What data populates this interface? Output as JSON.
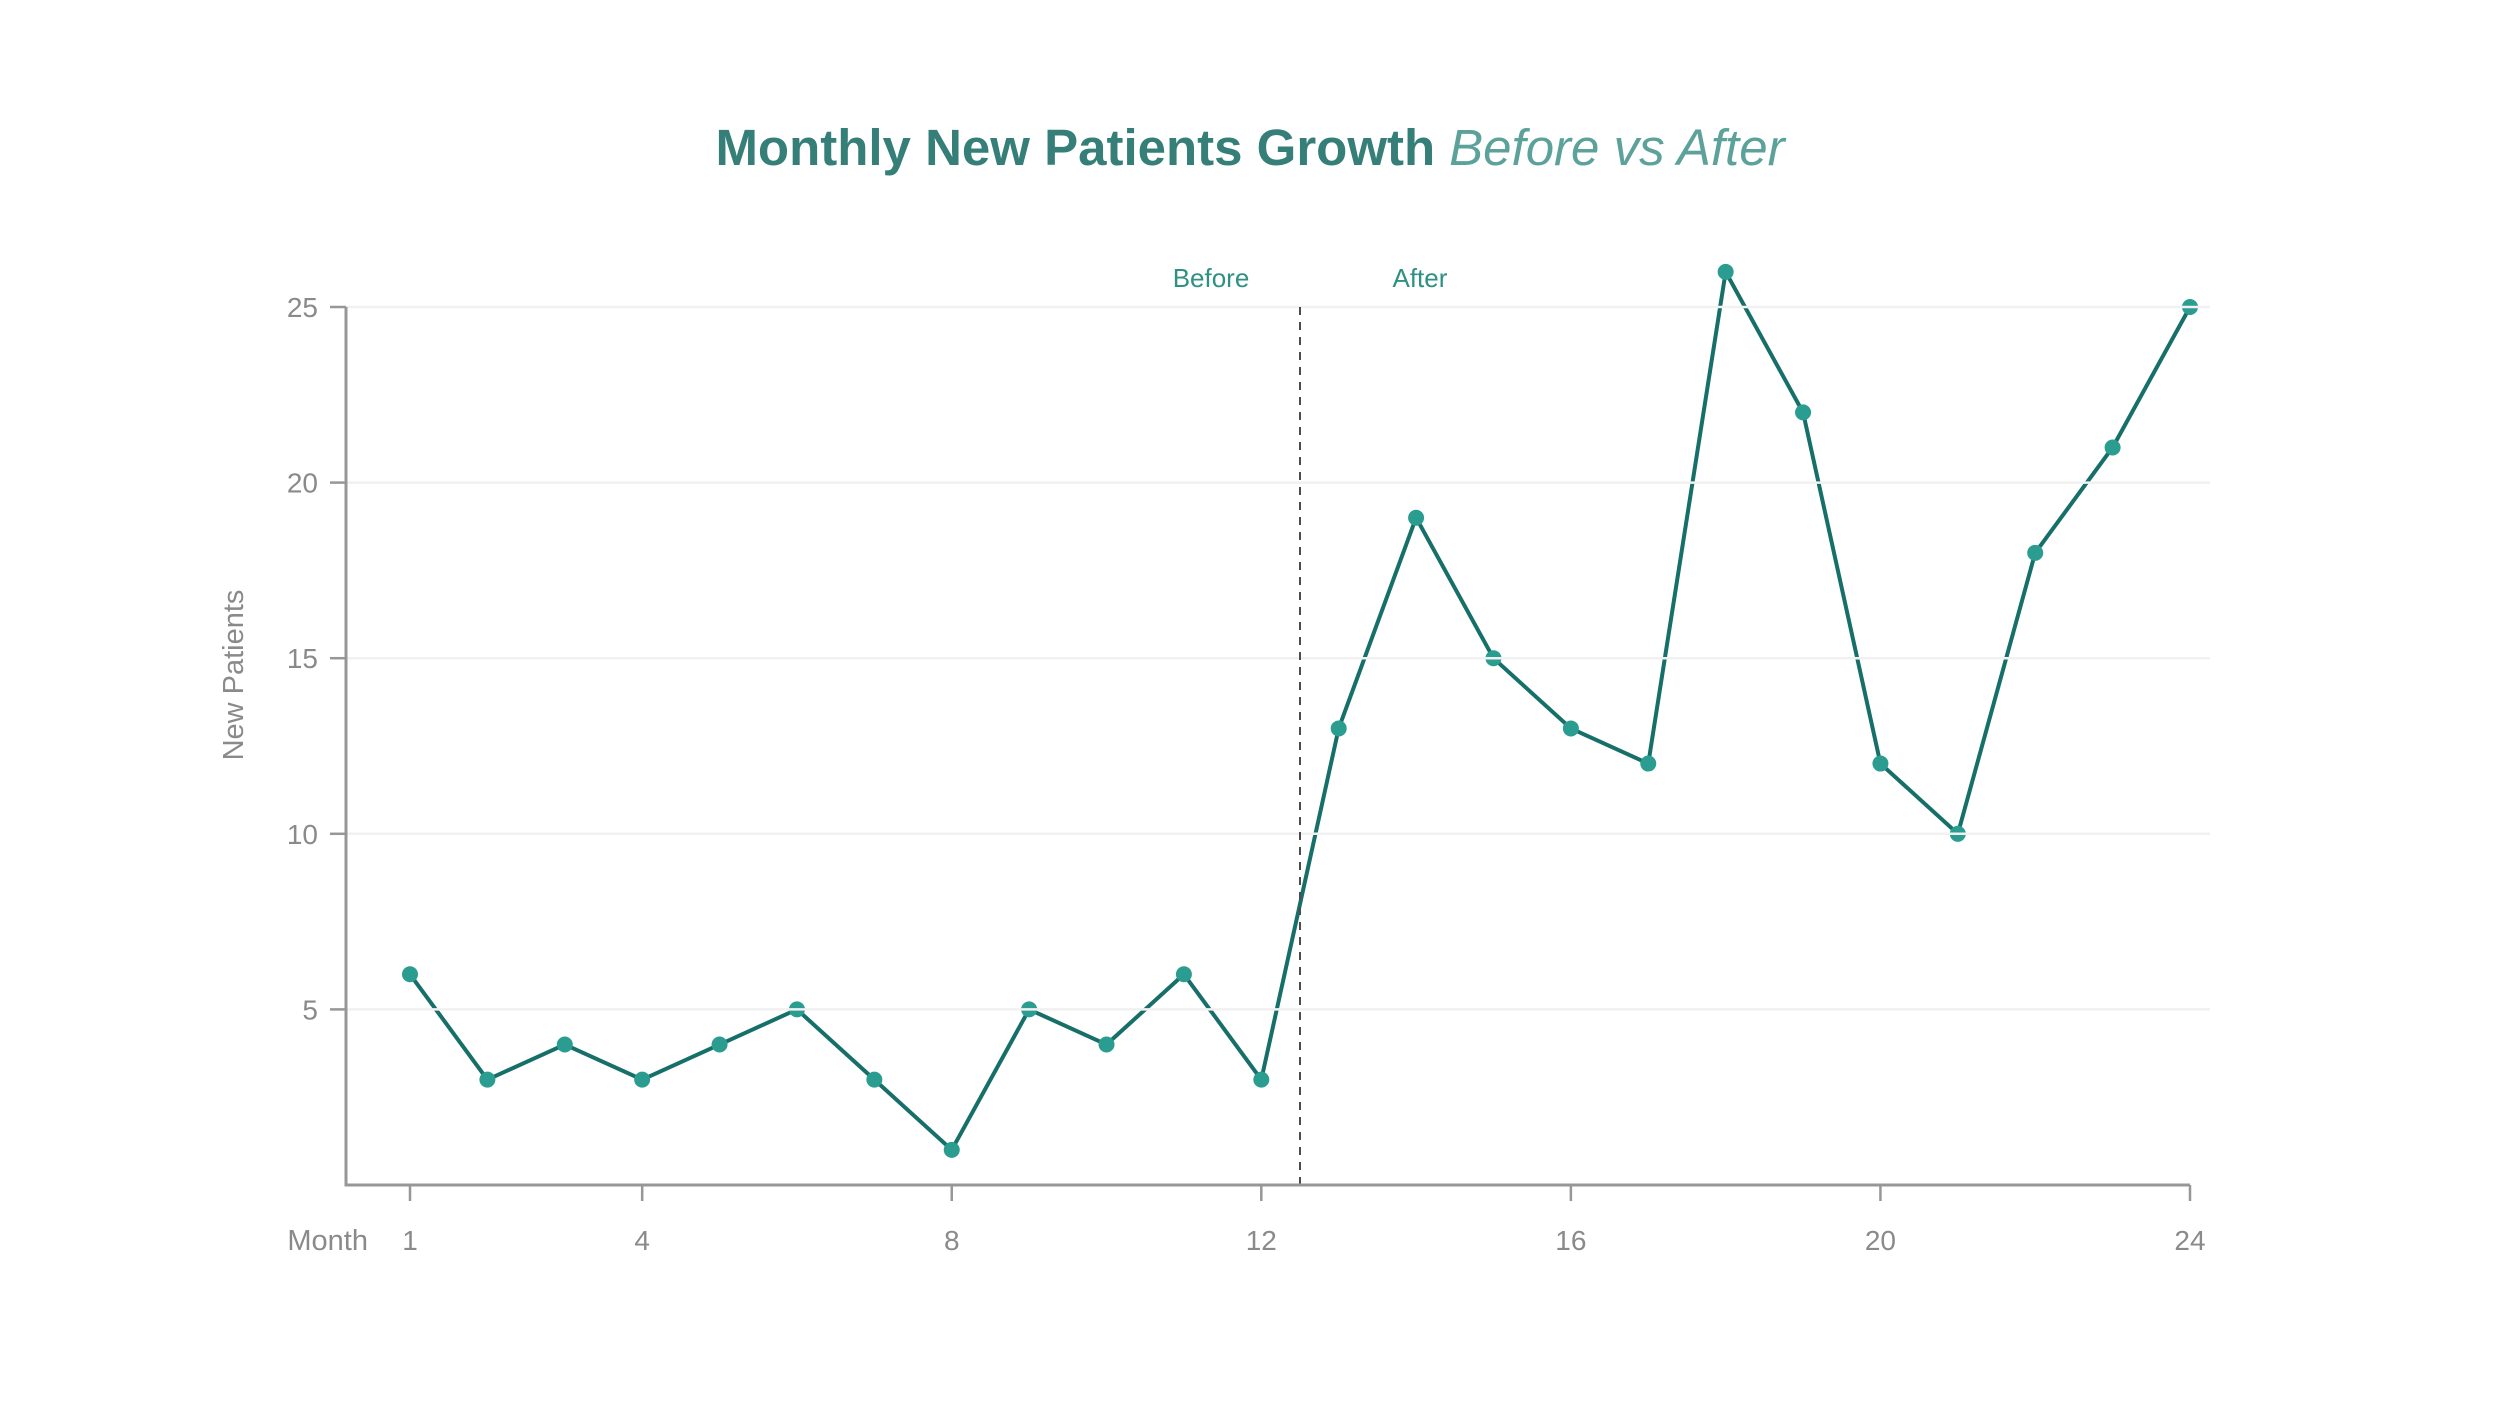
{
  "chart_data": {
    "type": "line",
    "title": "Monthly New Patients Growth",
    "subtitle": "Before vs After",
    "xlabel": "Month",
    "ylabel": "New Patients",
    "x": [
      1,
      2,
      3,
      4,
      5,
      6,
      7,
      8,
      9,
      10,
      11,
      12,
      13,
      14,
      15,
      16,
      17,
      18,
      19,
      20,
      21,
      22,
      23,
      24
    ],
    "series": [
      {
        "name": "New Patients",
        "values": [
          6,
          3,
          4,
          3,
          4,
          5,
          3,
          1,
          5,
          4,
          6,
          3,
          13,
          19,
          15,
          13,
          12,
          26,
          22,
          12,
          10,
          18,
          21,
          25
        ]
      }
    ],
    "x_ticks": [
      1,
      4,
      8,
      12,
      16,
      20,
      24
    ],
    "y_ticks": [
      5,
      10,
      15,
      20,
      25
    ],
    "xlim": [
      1,
      24
    ],
    "ylim": [
      0,
      26.5
    ],
    "grid": "horizontal-only",
    "legend": "none",
    "divider_x": 12.5,
    "annotations": [
      {
        "text": "Before",
        "month": 11.35
      },
      {
        "text": "After",
        "month": 14.05
      }
    ],
    "colors": {
      "title": "#367f79",
      "subtitle": "#5ca29b",
      "annotation": "#2e9184",
      "line": "#166f68",
      "marker": "#2a9c90",
      "axis": "#979797",
      "tick_label": "#8a8a8a",
      "gridline": "#f1f1f1",
      "divider": "#4c4c4c",
      "background": "#ffffff"
    }
  }
}
